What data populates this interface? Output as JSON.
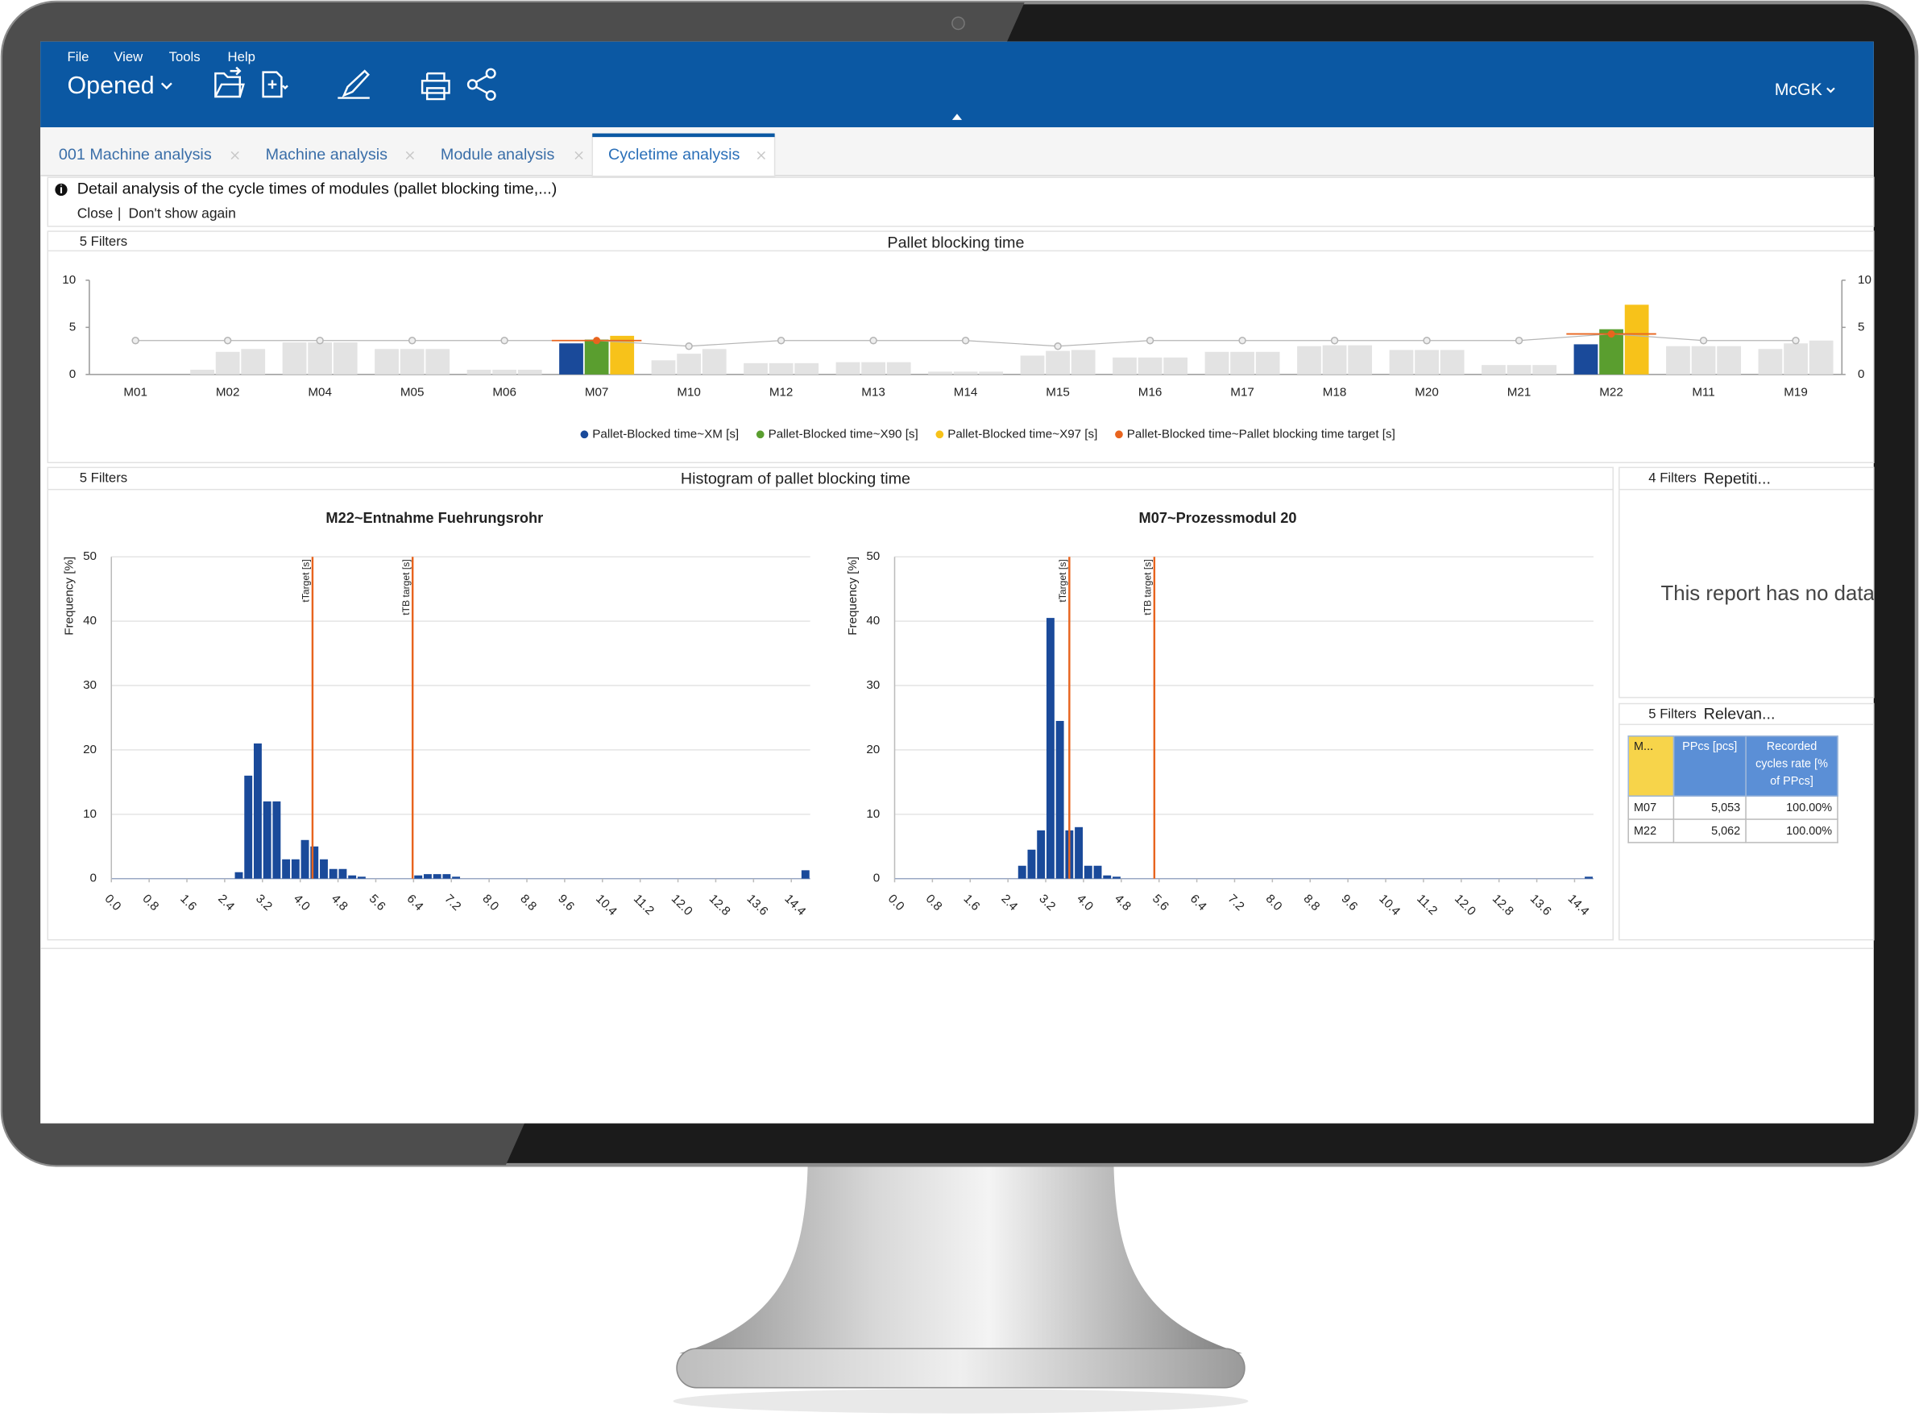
{
  "app": {
    "menu": [
      "File",
      "View",
      "Tools",
      "Help"
    ],
    "document": "Opened",
    "user": "McGK",
    "tabs": [
      "001 Machine analysis",
      "Machine analysis",
      "Module analysis",
      "Cycletime analysis"
    ],
    "active_tab": 3,
    "info": {
      "text": "Detail analysis of the cycle times of modules (pallet blocking time,...)",
      "close": "Close",
      "separator": "|",
      "dont_show": "Don't show again"
    },
    "histogram_panel": {
      "filters": "5 Filters",
      "title": "Histogram of pallet blocking time"
    },
    "repetition_panel": {
      "filters": "4 Filters",
      "title": "Repetiti...",
      "message": "This report has no data"
    },
    "relevance_panel": {
      "filters": "5 Filters",
      "title": "Relevan..."
    },
    "table": {
      "headers": [
        "M...",
        "PPcs [pcs]",
        "Recorded cycles rate [% of PPcs]"
      ],
      "rows": [
        [
          "M07",
          "5,053",
          "100.00%"
        ],
        [
          "M22",
          "5,062",
          "100.00%"
        ]
      ]
    }
  },
  "chart_data": [
    {
      "type": "bar",
      "title": "Pallet blocking time",
      "filters": "5 Filters",
      "categories": [
        "M01",
        "M02",
        "M04",
        "M05",
        "M06",
        "M07",
        "M10",
        "M12",
        "M13",
        "M14",
        "M15",
        "M16",
        "M17",
        "M18",
        "M20",
        "M21",
        "M22",
        "M11",
        "M19"
      ],
      "series": [
        {
          "name": "Pallet-Blocked time~XM [s]",
          "color": "#1a4a9a",
          "values": [
            0,
            0.5,
            3.4,
            2.7,
            0.5,
            3.3,
            1.5,
            1.2,
            1.3,
            0.3,
            2.0,
            1.8,
            2.4,
            3.0,
            2.6,
            1.0,
            3.2,
            3.0,
            2.7
          ]
        },
        {
          "name": "Pallet-Blocked time~X90 [s]",
          "color": "#5a9e2f",
          "values": [
            0,
            2.4,
            3.4,
            2.7,
            0.5,
            3.7,
            2.2,
            1.2,
            1.3,
            0.3,
            2.5,
            1.8,
            2.4,
            3.1,
            2.6,
            1.0,
            4.8,
            3.0,
            3.3
          ]
        },
        {
          "name": "Pallet-Blocked time~X97 [s]",
          "color": "#f7c21a",
          "values": [
            0,
            2.7,
            3.4,
            2.7,
            0.5,
            4.1,
            2.7,
            1.2,
            1.3,
            0.3,
            2.6,
            1.8,
            2.4,
            3.1,
            2.6,
            1.0,
            7.4,
            3.0,
            3.6
          ]
        },
        {
          "name": "Pallet-Blocked time~Pallet blocking time target [s]",
          "type": "line",
          "color": "#e8641e",
          "values": [
            3.6,
            3.6,
            3.6,
            3.6,
            3.6,
            3.6,
            3.0,
            3.6,
            3.6,
            3.6,
            3.0,
            3.6,
            3.6,
            3.6,
            3.6,
            3.6,
            4.3,
            3.6,
            3.6
          ]
        }
      ],
      "highlighted": [
        5,
        16
      ],
      "dim_color": "#e3e3e3",
      "dim_line_color": "#b5b5b5",
      "ylim": [
        0,
        10
      ],
      "yticks": [
        0,
        5,
        10
      ],
      "y2lim": [
        0,
        10
      ],
      "y2ticks": [
        0,
        5,
        10
      ],
      "legend": "bottom",
      "grid": false
    },
    {
      "type": "histogram",
      "title": "M22~Entnahme Fuehrungsrohr",
      "y_label": "Frequency [%]",
      "color": "#1a4a9a",
      "bins": [
        0,
        0.2,
        0.4,
        0.6,
        0.8,
        1,
        1.2,
        1.4,
        1.6,
        1.8,
        2,
        2.2,
        2.4,
        2.6,
        2.8,
        3,
        3.2,
        3.4,
        3.6,
        3.8,
        4,
        4.2,
        4.4,
        4.6,
        4.8,
        5,
        5.2,
        5.4,
        5.6,
        5.8,
        6,
        6.2,
        6.4,
        6.6,
        6.8,
        7,
        7.2,
        7.4,
        7.6,
        7.8,
        8,
        8.2,
        8.4,
        8.6,
        8.8,
        9,
        9.2,
        9.4,
        9.6,
        9.8,
        10,
        10.2,
        10.4,
        10.6,
        10.8,
        11,
        11.2,
        11.4,
        11.6,
        11.8,
        12,
        12.2,
        12.4,
        12.6,
        12.8,
        13,
        13.2,
        13.4,
        13.6,
        13.8,
        14,
        14.2,
        14.4,
        14.6,
        14.8
      ],
      "values": [
        0,
        0,
        0,
        0,
        0,
        0,
        0,
        0,
        0,
        0,
        0,
        0,
        0,
        1,
        16,
        21,
        12,
        12,
        3,
        3,
        6,
        5,
        3,
        1.5,
        1.5,
        0.5,
        0.3,
        0,
        0,
        0,
        0,
        0,
        0.5,
        0.7,
        0.7,
        0.7,
        0.3,
        0,
        0,
        0,
        0,
        0,
        0,
        0,
        0,
        0,
        0,
        0,
        0,
        0,
        0,
        0,
        0,
        0,
        0,
        0,
        0,
        0,
        0,
        0,
        0,
        0,
        0,
        0,
        0,
        0,
        0,
        0,
        0,
        0,
        0,
        0,
        0,
        1.3
      ],
      "reference_lines": [
        {
          "label": "tTarget [s]",
          "value": 4.26
        },
        {
          "label": "tTB target [s]",
          "value": 6.38
        }
      ],
      "reference_color": "#e8641e",
      "xlim": [
        0,
        14.8
      ],
      "xticks": [
        {
          "value": 0,
          "label": "0.0"
        },
        0.8,
        1.6,
        2.4,
        3.2,
        {
          "value": 4,
          "label": "4.0"
        },
        4.8,
        5.6,
        6.4,
        7.2,
        {
          "value": 8,
          "label": "8.0"
        },
        8.8,
        9.6,
        10.4,
        11.2,
        {
          "value": 12,
          "label": "12.0"
        },
        12.8,
        13.6,
        14.4
      ],
      "ylim": [
        0,
        50
      ],
      "yticks": [
        0,
        10,
        20,
        30,
        40,
        50
      ],
      "grid": true
    },
    {
      "type": "histogram",
      "title": "M07~Prozessmodul 20",
      "y_label": "Frequency [%]",
      "color": "#1a4a9a",
      "bins": [
        0,
        0.2,
        0.4,
        0.6,
        0.8,
        1,
        1.2,
        1.4,
        1.6,
        1.8,
        2,
        2.2,
        2.4,
        2.6,
        2.8,
        3,
        3.2,
        3.4,
        3.6,
        3.8,
        4,
        4.2,
        4.4,
        4.6,
        4.8,
        5,
        5.2,
        5.4,
        5.6,
        5.8,
        6,
        6.2,
        6.4,
        6.6,
        6.8,
        7,
        7.2,
        7.4,
        7.6,
        7.8,
        8,
        8.2,
        8.4,
        8.6,
        8.8,
        9,
        9.2,
        9.4,
        9.6,
        9.8,
        10,
        10.2,
        10.4,
        10.6,
        10.8,
        11,
        11.2,
        11.4,
        11.6,
        11.8,
        12,
        12.2,
        12.4,
        12.6,
        12.8,
        13,
        13.2,
        13.4,
        13.6,
        13.8,
        14,
        14.2,
        14.4,
        14.6,
        14.8
      ],
      "values": [
        0,
        0,
        0,
        0,
        0,
        0,
        0,
        0,
        0,
        0,
        0,
        0,
        0,
        2,
        4.5,
        7.5,
        40.5,
        24.5,
        7.5,
        8,
        2,
        2,
        0.5,
        0.3,
        0,
        0,
        0,
        0,
        0,
        0,
        0,
        0,
        0,
        0,
        0,
        0,
        0,
        0,
        0,
        0,
        0,
        0,
        0,
        0,
        0,
        0,
        0,
        0,
        0,
        0,
        0,
        0,
        0,
        0,
        0,
        0,
        0,
        0,
        0,
        0,
        0,
        0,
        0,
        0,
        0,
        0,
        0,
        0,
        0,
        0,
        0,
        0,
        0,
        0.3
      ],
      "reference_lines": [
        {
          "label": "tTarget [s]",
          "value": 3.7
        },
        {
          "label": "tTB target [s]",
          "value": 5.5
        }
      ],
      "reference_color": "#e8641e",
      "xlim": [
        0,
        14.8
      ],
      "xticks": [
        {
          "value": 0,
          "label": "0.0"
        },
        0.8,
        1.6,
        2.4,
        3.2,
        {
          "value": 4,
          "label": "4.0"
        },
        4.8,
        5.6,
        6.4,
        7.2,
        {
          "value": 8,
          "label": "8.0"
        },
        8.8,
        9.6,
        10.4,
        11.2,
        {
          "value": 12,
          "label": "12.0"
        },
        12.8,
        13.6,
        14.4
      ],
      "ylim": [
        0,
        50
      ],
      "yticks": [
        0,
        10,
        20,
        30,
        40,
        50
      ],
      "grid": true
    }
  ]
}
